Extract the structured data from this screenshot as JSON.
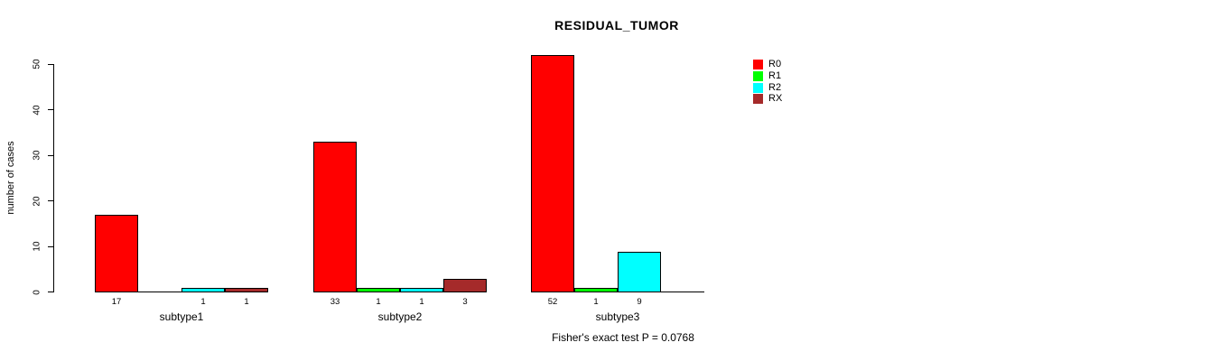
{
  "chart_data": {
    "type": "bar",
    "grouped": true,
    "title": "RESIDUAL_TUMOR",
    "xlabel": "",
    "ylabel": "number of cases",
    "ylim": [
      0,
      50
    ],
    "yticks": [
      0,
      10,
      20,
      30,
      40,
      50
    ],
    "categories": [
      "subtype1",
      "subtype2",
      "subtype3"
    ],
    "series": [
      {
        "name": "R0",
        "color": "#FF0000",
        "values": [
          17,
          33,
          52
        ]
      },
      {
        "name": "R1",
        "color": "#00FF00",
        "values": [
          0,
          1,
          1
        ]
      },
      {
        "name": "R2",
        "color": "#00FFFF",
        "values": [
          1,
          1,
          9
        ]
      },
      {
        "name": "RX",
        "color": "#A52A2A",
        "values": [
          1,
          3,
          0
        ]
      }
    ],
    "bar_value_labels": true,
    "zero_bars_hidden": true,
    "legend_position": "right",
    "legend_frame": false,
    "grid": false,
    "background": "#FFFFFF",
    "axis_color": "#000000",
    "annotation": "Fisher's exact test P = 0.0768"
  }
}
